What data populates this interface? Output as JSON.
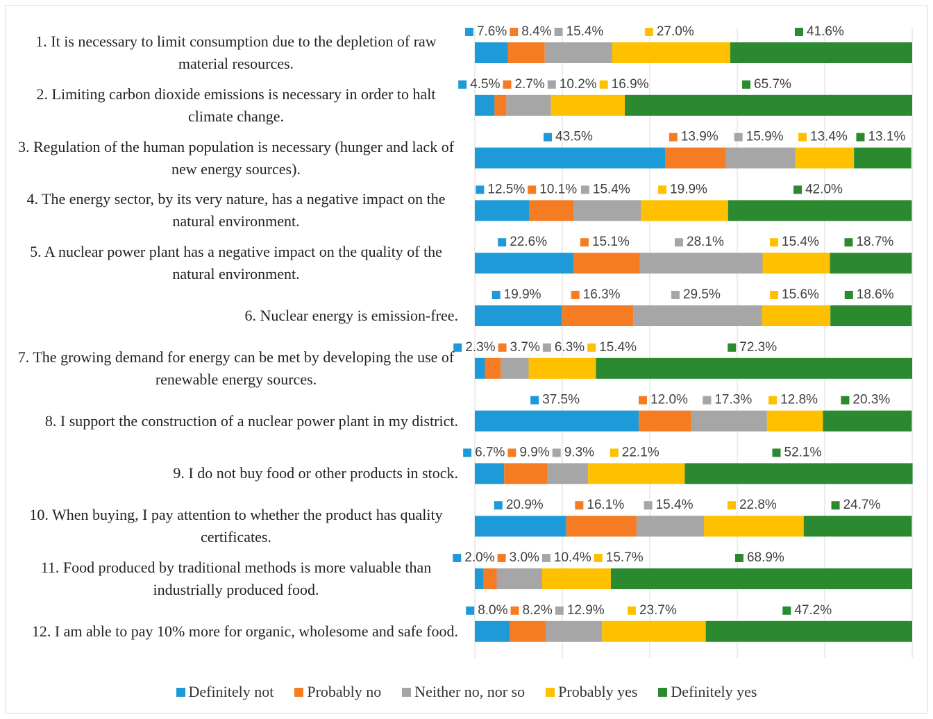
{
  "chart_data": {
    "type": "stacked_bar_horizontal",
    "categories": [
      "1. It is necessary to limit consumption due to the depletion of raw material resources.",
      "2. Limiting carbon dioxide emissions is necessary in order to halt climate change.",
      "3. Regulation of the human population is necessary (hunger and lack of new energy sources).",
      "4. The energy sector, by its very nature, has a negative impact on the natural environment.",
      "5. A nuclear power plant has a negative impact on the quality of the natural environment.",
      "6. Nuclear energy is emission-free.",
      "7. The growing demand for energy can be met by developing the use of renewable energy sources.",
      "8. I support the construction of a nuclear power plant in my district.",
      "9. I do not buy food or other products in stock.",
      "10. When buying, I pay attention to whether the product has quality certificates.",
      "11. Food produced by traditional methods is more valuable than industrially produced food.",
      "12. I am able to pay 10% more for organic, wholesome and safe food."
    ],
    "series": [
      {
        "name": "Definitely not",
        "color": "#1f9ad8",
        "values": [
          7.6,
          4.5,
          43.5,
          12.5,
          22.6,
          19.9,
          2.3,
          37.5,
          6.7,
          20.9,
          2.0,
          8.0
        ],
        "value_labels": [
          "7.6%",
          "4.5%",
          "43.5%",
          "12.5%",
          "22.6%",
          "19.9%",
          "2.3%",
          "37.5%",
          "6.7%",
          "20.9%",
          "2.0%",
          "8.0%"
        ]
      },
      {
        "name": "Probably no",
        "color": "#f57c22",
        "values": [
          8.4,
          2.7,
          13.9,
          10.1,
          15.1,
          16.3,
          3.7,
          12.0,
          9.9,
          16.1,
          3.0,
          8.2
        ],
        "value_labels": [
          "8.4%",
          "2.7%",
          "13.9%",
          "10.1%",
          "15.1%",
          "16.3%",
          "3.7%",
          "12.0%",
          "9.9%",
          "16.1%",
          "3.0%",
          "8.2%"
        ]
      },
      {
        "name": "Neither no, nor so",
        "color": "#a6a6a6",
        "values": [
          15.4,
          10.2,
          15.9,
          15.4,
          28.1,
          29.5,
          6.3,
          17.3,
          9.3,
          15.4,
          10.4,
          12.9
        ],
        "value_labels": [
          "15.4%",
          "10.2%",
          "15.9%",
          "15.4%",
          "28.1%",
          "29.5%",
          "6.3%",
          "17.3%",
          "9.3%",
          "15.4%",
          "10.4%",
          "12.9%"
        ]
      },
      {
        "name": "Probably yes",
        "color": "#ffc000",
        "values": [
          27.0,
          16.9,
          13.4,
          19.9,
          15.4,
          15.6,
          15.4,
          12.8,
          22.1,
          22.8,
          15.7,
          23.7
        ],
        "value_labels": [
          "27.0%",
          "16.9%",
          "13.4%",
          "19.9%",
          "15.4%",
          "15.6%",
          "15.4%",
          "12.8%",
          "22.1%",
          "22.8%",
          "15.7%",
          "23.7%"
        ]
      },
      {
        "name": "Definitely yes",
        "color": "#2b8a30",
        "values": [
          41.6,
          65.7,
          13.1,
          42.0,
          18.7,
          18.6,
          72.3,
          20.3,
          52.1,
          24.7,
          68.9,
          47.2
        ],
        "value_labels": [
          "41.6%",
          "65.7%",
          "13.1%",
          "42.0%",
          "18.7%",
          "18.6%",
          "72.3%",
          "20.3%",
          "52.1%",
          "24.7%",
          "68.9%",
          "47.2%"
        ]
      }
    ],
    "xlim": [
      0,
      100
    ],
    "xticks": [
      0,
      20,
      40,
      60,
      80,
      100
    ],
    "grid": true,
    "legend": "bottom"
  }
}
